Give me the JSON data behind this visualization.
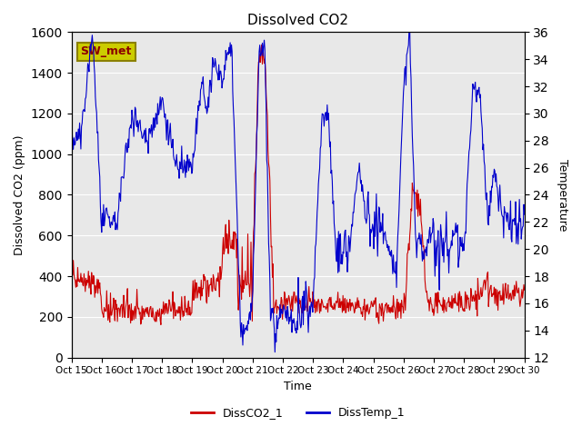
{
  "title": "Dissolved CO2",
  "xlabel": "Time",
  "ylabel_left": "Dissolved CO2 (ppm)",
  "ylabel_right": "Temperature",
  "ylim_left": [
    0,
    1600
  ],
  "ylim_right": [
    12,
    36
  ],
  "xtick_labels": [
    "Oct 15",
    "Oct 16",
    "Oct 17",
    "Oct 18",
    "Oct 19",
    "Oct 20",
    "Oct 21",
    "Oct 22",
    "Oct 23",
    "Oct 24",
    "Oct 25",
    "Oct 26",
    "Oct 27",
    "Oct 28",
    "Oct 29",
    "Oct 30"
  ],
  "legend_labels": [
    "DissCO2_1",
    "DissTemp_1"
  ],
  "co2_color": "#cc0000",
  "temp_color": "#0000cc",
  "bg_color": "#e8e8e8",
  "label_box_text": "SW_met",
  "label_box_color": "#cccc00",
  "label_box_text_color": "#8B0000"
}
